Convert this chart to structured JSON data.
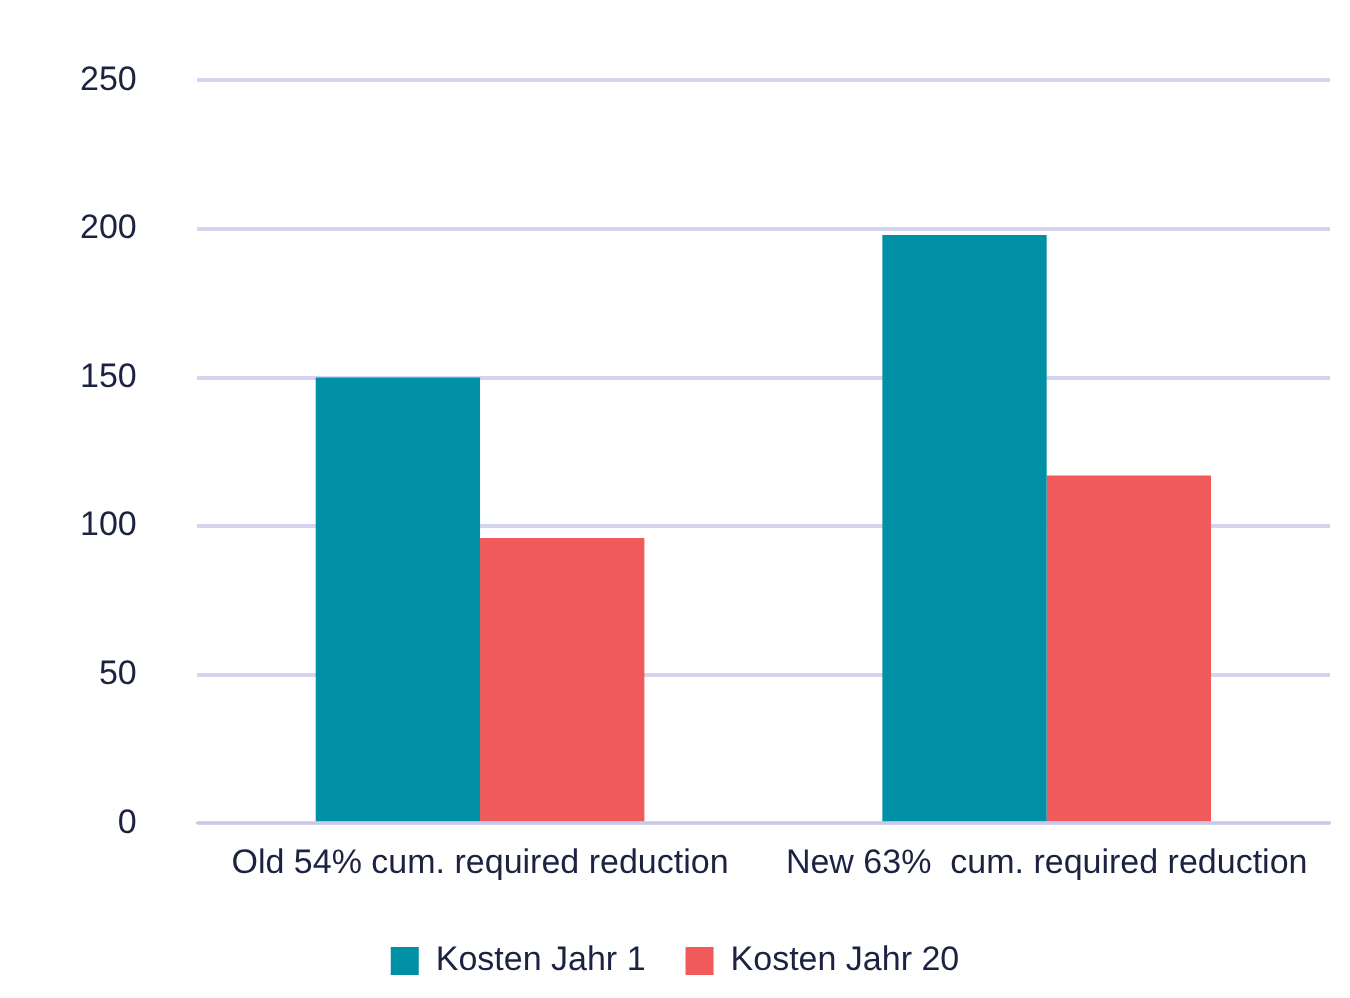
{
  "chart_data": {
    "type": "bar",
    "categories": [
      "Old 54% cum. required reduction",
      "New 63%  cum. required reduction"
    ],
    "series": [
      {
        "name": "Kosten Jahr 1",
        "color": "#0090a6",
        "values": [
          150,
          198
        ]
      },
      {
        "name": "Kosten Jahr 20",
        "color": "#f05a5a",
        "values": [
          96,
          117
        ]
      }
    ],
    "ylim": [
      0,
      250
    ],
    "yticks": [
      0,
      50,
      100,
      150,
      200,
      250
    ],
    "grid": "y",
    "legend": "bottom"
  }
}
